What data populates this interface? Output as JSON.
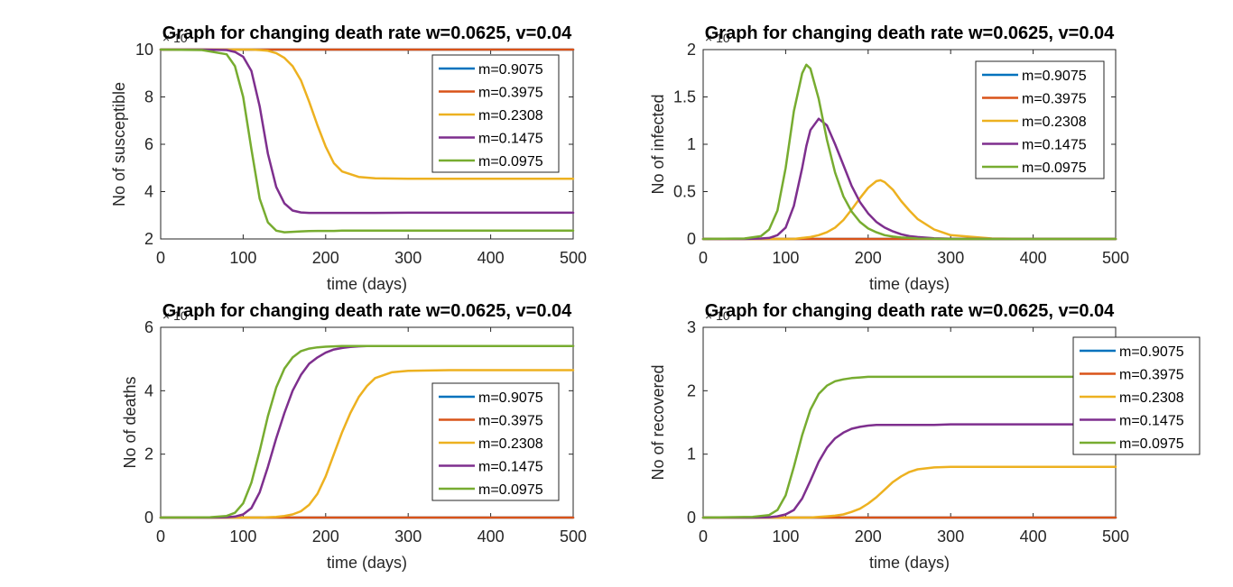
{
  "chart_data": [
    {
      "type": "line",
      "title": "Graph for changing death rate  w=0.0625, v=0.04",
      "xlabel": "time (days)",
      "ylabel": "No of susceptible",
      "xlim": [
        0,
        500
      ],
      "ylim": [
        2,
        10
      ],
      "xticks": [
        "0",
        "100",
        "200",
        "300",
        "400",
        "500"
      ],
      "yticks": [
        "2",
        "4",
        "6",
        "8",
        "10"
      ],
      "yexponent": "× 10",
      "legend_position": "top-right",
      "x": [
        0,
        50,
        80,
        90,
        100,
        110,
        120,
        130,
        140,
        150,
        160,
        170,
        180,
        190,
        200,
        210,
        220,
        240,
        260,
        300,
        400,
        500
      ],
      "series": [
        {
          "name": "m=0.9075",
          "color": "#0072BD",
          "values": [
            10,
            10,
            10,
            10,
            10,
            10,
            10,
            10,
            10,
            10,
            10,
            10,
            10,
            10,
            10,
            10,
            10,
            10,
            10,
            10,
            10,
            10
          ]
        },
        {
          "name": "m=0.3975",
          "color": "#D95319",
          "values": [
            10,
            10,
            10,
            10,
            10,
            10,
            10,
            10,
            10,
            10,
            10,
            10,
            10,
            10,
            10,
            10,
            10,
            10,
            10,
            10,
            10,
            10
          ]
        },
        {
          "name": "m=0.2308",
          "color": "#EDB120",
          "values": [
            10,
            10,
            10,
            10,
            10,
            10,
            9.98,
            9.95,
            9.85,
            9.65,
            9.3,
            8.7,
            7.8,
            6.8,
            5.9,
            5.2,
            4.85,
            4.62,
            4.56,
            4.54,
            4.54,
            4.54
          ]
        },
        {
          "name": "m=0.1475",
          "color": "#7E2F8E",
          "values": [
            10,
            10,
            9.98,
            9.9,
            9.7,
            9.1,
            7.6,
            5.6,
            4.2,
            3.5,
            3.2,
            3.12,
            3.1,
            3.1,
            3.1,
            3.1,
            3.1,
            3.1,
            3.1,
            3.11,
            3.11,
            3.11
          ]
        },
        {
          "name": "m=0.0975",
          "color": "#77AC30",
          "values": [
            10,
            9.98,
            9.8,
            9.3,
            8.0,
            5.8,
            3.7,
            2.7,
            2.35,
            2.28,
            2.3,
            2.32,
            2.33,
            2.34,
            2.34,
            2.34,
            2.35,
            2.35,
            2.35,
            2.35,
            2.35,
            2.35
          ]
        }
      ]
    },
    {
      "type": "line",
      "title": "Graph for changing death rate  w=0.0625, v=0.04",
      "xlabel": "time (days)",
      "ylabel": "No of infected",
      "xlim": [
        0,
        500
      ],
      "ylim": [
        0,
        2
      ],
      "xticks": [
        "0",
        "100",
        "200",
        "300",
        "400",
        "500"
      ],
      "yticks": [
        "0",
        "0.5",
        "1",
        "1.5",
        "2"
      ],
      "yexponent": "× 10",
      "legend_position": "top-right",
      "x": [
        0,
        50,
        70,
        80,
        90,
        100,
        110,
        120,
        125,
        130,
        140,
        150,
        160,
        170,
        180,
        190,
        200,
        210,
        215,
        220,
        230,
        240,
        250,
        260,
        280,
        300,
        350,
        400,
        500
      ],
      "series": [
        {
          "name": "m=0.9075",
          "color": "#0072BD",
          "values": [
            0,
            0,
            0,
            0,
            0,
            0,
            0,
            0,
            0,
            0,
            0,
            0,
            0,
            0,
            0,
            0,
            0,
            0,
            0,
            0,
            0,
            0,
            0,
            0,
            0,
            0,
            0,
            0,
            0
          ]
        },
        {
          "name": "m=0.3975",
          "color": "#D95319",
          "values": [
            0,
            0,
            0,
            0,
            0,
            0,
            0,
            0,
            0,
            0,
            0,
            0,
            0,
            0,
            0,
            0,
            0,
            0,
            0,
            0,
            0,
            0,
            0,
            0,
            0,
            0,
            0,
            0,
            0
          ]
        },
        {
          "name": "m=0.2308",
          "color": "#EDB120",
          "values": [
            0,
            0,
            0,
            0,
            0,
            0,
            0,
            0.01,
            0.015,
            0.02,
            0.04,
            0.07,
            0.12,
            0.2,
            0.31,
            0.43,
            0.54,
            0.61,
            0.62,
            0.6,
            0.52,
            0.4,
            0.3,
            0.21,
            0.1,
            0.04,
            0.005,
            0,
            0
          ]
        },
        {
          "name": "m=0.1475",
          "color": "#7E2F8E",
          "values": [
            0,
            0,
            0.005,
            0.01,
            0.04,
            0.12,
            0.35,
            0.75,
            0.98,
            1.15,
            1.27,
            1.2,
            1.0,
            0.78,
            0.56,
            0.39,
            0.27,
            0.18,
            0.15,
            0.12,
            0.08,
            0.05,
            0.03,
            0.02,
            0.008,
            0.003,
            0,
            0,
            0
          ]
        },
        {
          "name": "m=0.0975",
          "color": "#77AC30",
          "values": [
            0,
            0.005,
            0.03,
            0.1,
            0.3,
            0.75,
            1.35,
            1.75,
            1.84,
            1.8,
            1.48,
            1.05,
            0.7,
            0.45,
            0.29,
            0.18,
            0.11,
            0.07,
            0.055,
            0.04,
            0.025,
            0.015,
            0.01,
            0.005,
            0.002,
            0,
            0,
            0,
            0
          ]
        }
      ]
    },
    {
      "type": "line",
      "title": "Graph for changing death rate  w=0.0625, v=0.04",
      "xlabel": "time (days)",
      "ylabel": "No of deaths",
      "xlim": [
        0,
        500
      ],
      "ylim": [
        0,
        6
      ],
      "xticks": [
        "0",
        "100",
        "200",
        "300",
        "400",
        "500"
      ],
      "yticks": [
        "0",
        "2",
        "4",
        "6"
      ],
      "yexponent": "× 10",
      "legend_position": "bottom-right",
      "x": [
        0,
        60,
        80,
        90,
        100,
        110,
        120,
        130,
        140,
        150,
        160,
        170,
        180,
        190,
        200,
        210,
        220,
        230,
        240,
        250,
        260,
        280,
        300,
        350,
        400,
        500
      ],
      "series": [
        {
          "name": "m=0.9075",
          "color": "#0072BD",
          "values": [
            0,
            0,
            0,
            0,
            0,
            0,
            0,
            0,
            0,
            0,
            0,
            0,
            0,
            0,
            0,
            0,
            0,
            0,
            0,
            0,
            0,
            0,
            0,
            0,
            0,
            0
          ]
        },
        {
          "name": "m=0.3975",
          "color": "#D95319",
          "values": [
            0,
            0,
            0,
            0,
            0,
            0,
            0,
            0,
            0,
            0,
            0,
            0,
            0,
            0,
            0,
            0,
            0,
            0,
            0,
            0,
            0,
            0,
            0,
            0,
            0,
            0
          ]
        },
        {
          "name": "m=0.2308",
          "color": "#EDB120",
          "values": [
            0,
            0,
            0,
            0,
            0,
            0,
            0,
            0.01,
            0.02,
            0.05,
            0.1,
            0.2,
            0.4,
            0.75,
            1.3,
            2.0,
            2.7,
            3.3,
            3.8,
            4.15,
            4.4,
            4.58,
            4.63,
            4.65,
            4.65,
            4.65
          ]
        },
        {
          "name": "m=0.1475",
          "color": "#7E2F8E",
          "values": [
            0,
            0,
            0.01,
            0.03,
            0.1,
            0.3,
            0.8,
            1.6,
            2.5,
            3.3,
            4.0,
            4.5,
            4.85,
            5.05,
            5.2,
            5.3,
            5.35,
            5.38,
            5.4,
            5.41,
            5.41,
            5.41,
            5.41,
            5.41,
            5.41,
            5.41
          ]
        },
        {
          "name": "m=0.0975",
          "color": "#77AC30",
          "values": [
            0,
            0.01,
            0.05,
            0.15,
            0.45,
            1.1,
            2.1,
            3.2,
            4.1,
            4.7,
            5.05,
            5.25,
            5.33,
            5.37,
            5.39,
            5.4,
            5.41,
            5.41,
            5.41,
            5.41,
            5.41,
            5.41,
            5.41,
            5.41,
            5.41,
            5.41
          ]
        }
      ]
    },
    {
      "type": "line",
      "title": "Graph for changing death rate  w=0.0625, v=0.04",
      "xlabel": "time (days)",
      "ylabel": "No of recovered",
      "xlim": [
        0,
        500
      ],
      "ylim": [
        0,
        3
      ],
      "xticks": [
        "0",
        "100",
        "200",
        "300",
        "400",
        "500"
      ],
      "yticks": [
        "0",
        "1",
        "2",
        "3"
      ],
      "yexponent": "× 10",
      "legend_position": "top-right",
      "x": [
        0,
        60,
        80,
        90,
        100,
        110,
        120,
        130,
        140,
        150,
        160,
        170,
        180,
        190,
        200,
        210,
        220,
        230,
        240,
        250,
        260,
        280,
        300,
        350,
        400,
        500
      ],
      "series": [
        {
          "name": "m=0.9075",
          "color": "#0072BD",
          "values": [
            0,
            0,
            0,
            0,
            0,
            0,
            0,
            0,
            0,
            0,
            0,
            0,
            0,
            0,
            0,
            0,
            0,
            0,
            0,
            0,
            0,
            0,
            0,
            0,
            0,
            0
          ]
        },
        {
          "name": "m=0.3975",
          "color": "#D95319",
          "values": [
            0,
            0,
            0,
            0,
            0,
            0,
            0,
            0,
            0,
            0,
            0,
            0,
            0,
            0,
            0,
            0,
            0,
            0,
            0,
            0,
            0,
            0,
            0,
            0,
            0,
            0
          ]
        },
        {
          "name": "m=0.2308",
          "color": "#EDB120",
          "values": [
            0,
            0,
            0,
            0,
            0,
            0,
            0,
            0,
            0.01,
            0.02,
            0.03,
            0.05,
            0.09,
            0.14,
            0.22,
            0.32,
            0.44,
            0.56,
            0.65,
            0.72,
            0.76,
            0.79,
            0.8,
            0.8,
            0.8,
            0.8
          ]
        },
        {
          "name": "m=0.1475",
          "color": "#7E2F8E",
          "values": [
            0,
            0,
            0.005,
            0.02,
            0.05,
            0.12,
            0.3,
            0.58,
            0.88,
            1.1,
            1.25,
            1.34,
            1.4,
            1.43,
            1.45,
            1.46,
            1.46,
            1.46,
            1.46,
            1.46,
            1.46,
            1.46,
            1.47,
            1.47,
            1.47,
            1.47
          ]
        },
        {
          "name": "m=0.0975",
          "color": "#77AC30",
          "values": [
            0,
            0.01,
            0.04,
            0.12,
            0.35,
            0.8,
            1.3,
            1.7,
            1.95,
            2.08,
            2.15,
            2.18,
            2.2,
            2.21,
            2.22,
            2.22,
            2.22,
            2.22,
            2.22,
            2.22,
            2.22,
            2.22,
            2.22,
            2.22,
            2.22,
            2.22
          ]
        }
      ]
    }
  ]
}
